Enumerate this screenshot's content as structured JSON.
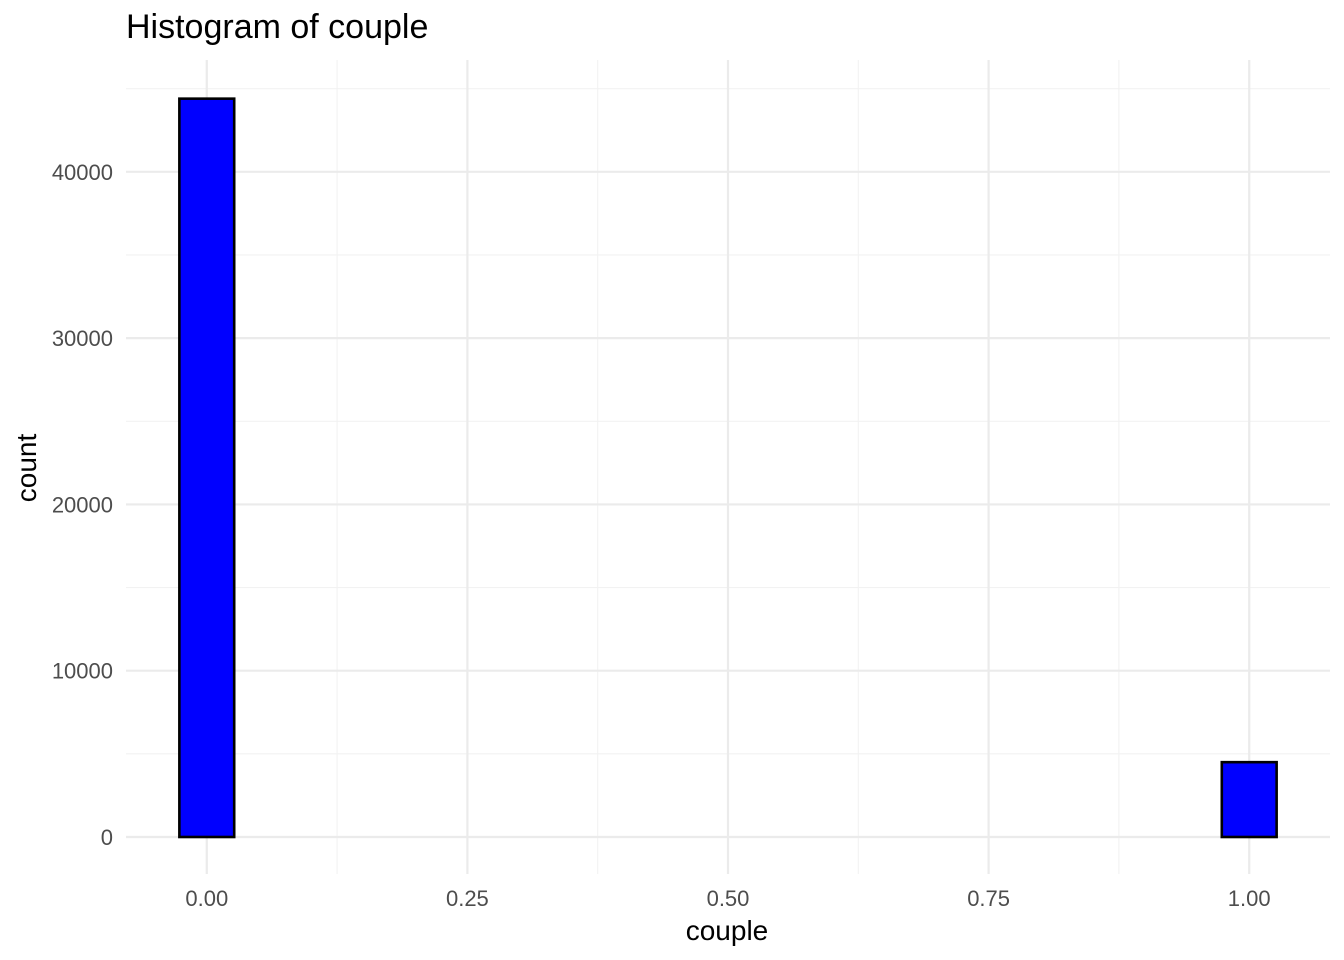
{
  "chart_data": {
    "type": "bar",
    "title": "Histogram of couple",
    "xlabel": "couple",
    "ylabel": "count",
    "x_ticks": [
      "0.00",
      "0.25",
      "0.50",
      "0.75",
      "1.00"
    ],
    "x_tick_values": [
      0,
      0.25,
      0.5,
      0.75,
      1.0
    ],
    "y_ticks": [
      "0",
      "10000",
      "20000",
      "30000",
      "40000"
    ],
    "y_tick_values": [
      0,
      10000,
      20000,
      30000,
      40000
    ],
    "xlim": [
      -0.0775,
      1.0775
    ],
    "ylim": [
      -2225,
      46725
    ],
    "bin_width": 0.0526,
    "bins": [
      {
        "x": 0.0,
        "count": 44400
      },
      {
        "x": 0.0526,
        "count": 0
      },
      {
        "x": 0.1053,
        "count": 0
      },
      {
        "x": 0.1579,
        "count": 0
      },
      {
        "x": 0.2105,
        "count": 0
      },
      {
        "x": 0.2632,
        "count": 0
      },
      {
        "x": 0.3158,
        "count": 0
      },
      {
        "x": 0.3684,
        "count": 0
      },
      {
        "x": 0.4211,
        "count": 0
      },
      {
        "x": 0.4737,
        "count": 0
      },
      {
        "x": 0.5263,
        "count": 0
      },
      {
        "x": 0.5789,
        "count": 0
      },
      {
        "x": 0.6316,
        "count": 0
      },
      {
        "x": 0.6842,
        "count": 0
      },
      {
        "x": 0.7368,
        "count": 0
      },
      {
        "x": 0.7895,
        "count": 0
      },
      {
        "x": 0.8421,
        "count": 0
      },
      {
        "x": 0.8947,
        "count": 0
      },
      {
        "x": 0.9474,
        "count": 0
      },
      {
        "x": 1.0,
        "count": 4500
      }
    ],
    "fill_color": "#0000ff",
    "outline_color": "#000000",
    "grid": true,
    "legend": "none"
  }
}
